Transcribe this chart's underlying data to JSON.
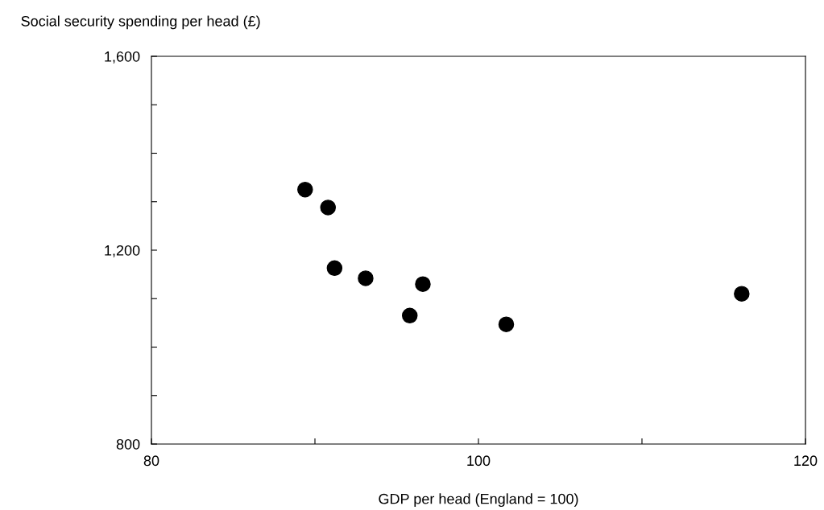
{
  "chart_data": {
    "type": "scatter",
    "xlabel": "GDP per head (England = 100)",
    "ylabel": "Social security spending per head (£)",
    "x": [
      89.4,
      90.8,
      91.2,
      93.1,
      95.8,
      96.6,
      101.7,
      116.1
    ],
    "values": [
      1325,
      1288,
      1163,
      1142,
      1065,
      1130,
      1047,
      1110
    ],
    "color": "#000000",
    "marker": "circle",
    "xlim": [
      80,
      120
    ],
    "xticks": [
      80,
      {
        "value": 90,
        "label": null
      },
      100,
      {
        "value": 110,
        "label": null
      },
      120
    ],
    "ylim": [
      800,
      1600
    ],
    "yticks": [
      {
        "value": 800,
        "label": "800"
      },
      {
        "value": 900,
        "label": null
      },
      {
        "value": 1000,
        "label": null
      },
      {
        "value": 1100,
        "label": null
      },
      {
        "value": 1200,
        "label": "1,200"
      },
      {
        "value": 1300,
        "label": null
      },
      {
        "value": 1400,
        "label": null
      },
      {
        "value": 1500,
        "label": null
      },
      {
        "value": 1600,
        "label": "1,600"
      }
    ],
    "grid": false,
    "legend": false
  }
}
